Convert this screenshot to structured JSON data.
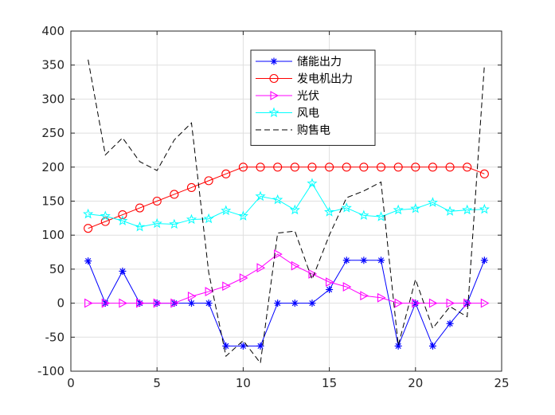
{
  "chart_data": {
    "type": "line",
    "x": [
      1,
      2,
      3,
      4,
      5,
      6,
      7,
      8,
      9,
      10,
      11,
      12,
      13,
      14,
      15,
      16,
      17,
      18,
      19,
      20,
      21,
      22,
      23,
      24
    ],
    "xlim": [
      0,
      25
    ],
    "ylim": [
      -100,
      400
    ],
    "xticks": [
      "0",
      "5",
      "10",
      "15",
      "20",
      "25"
    ],
    "yticks": [
      "-100",
      "-50",
      "0",
      "50",
      "100",
      "150",
      "200",
      "250",
      "300",
      "350",
      "400"
    ],
    "grid": true,
    "legend_position": "top-center",
    "series": [
      {
        "name": "储能出力",
        "color": "#0000ff",
        "marker": "asterisk",
        "line": "solid",
        "values": [
          62,
          0,
          47,
          0,
          0,
          0,
          0,
          0,
          -63,
          -63,
          -63,
          0,
          0,
          0,
          20,
          63,
          63,
          63,
          -63,
          0,
          -63,
          -30,
          0,
          63
        ]
      },
      {
        "name": "发电机出力",
        "color": "#ff0000",
        "marker": "circle",
        "line": "solid",
        "values": [
          110,
          120,
          130,
          140,
          150,
          160,
          170,
          180,
          190,
          200,
          200,
          200,
          200,
          200,
          200,
          200,
          200,
          200,
          200,
          200,
          200,
          200,
          200,
          190
        ]
      },
      {
        "name": "光伏",
        "color": "#ff00ff",
        "marker": "triangle-right",
        "line": "solid",
        "values": [
          0,
          0,
          0,
          0,
          0,
          0,
          10,
          17,
          25,
          37,
          52,
          72,
          55,
          43,
          31,
          24,
          11,
          8,
          0,
          0,
          0,
          0,
          0,
          0
        ]
      },
      {
        "name": "风电",
        "color": "#00ffff",
        "marker": "pentagram",
        "line": "solid",
        "values": [
          131,
          128,
          121,
          112,
          117,
          116,
          123,
          124,
          136,
          128,
          157,
          152,
          137,
          176,
          134,
          140,
          129,
          127,
          137,
          139,
          148,
          135,
          137,
          138
        ]
      },
      {
        "name": "购售电",
        "color": "#000000",
        "marker": "none",
        "line": "dashed",
        "values": [
          358,
          218,
          243,
          208,
          195,
          240,
          265,
          45,
          -78,
          -55,
          -88,
          103,
          106,
          35,
          100,
          155,
          165,
          178,
          -62,
          35,
          -37,
          -5,
          -20,
          350
        ]
      }
    ]
  }
}
